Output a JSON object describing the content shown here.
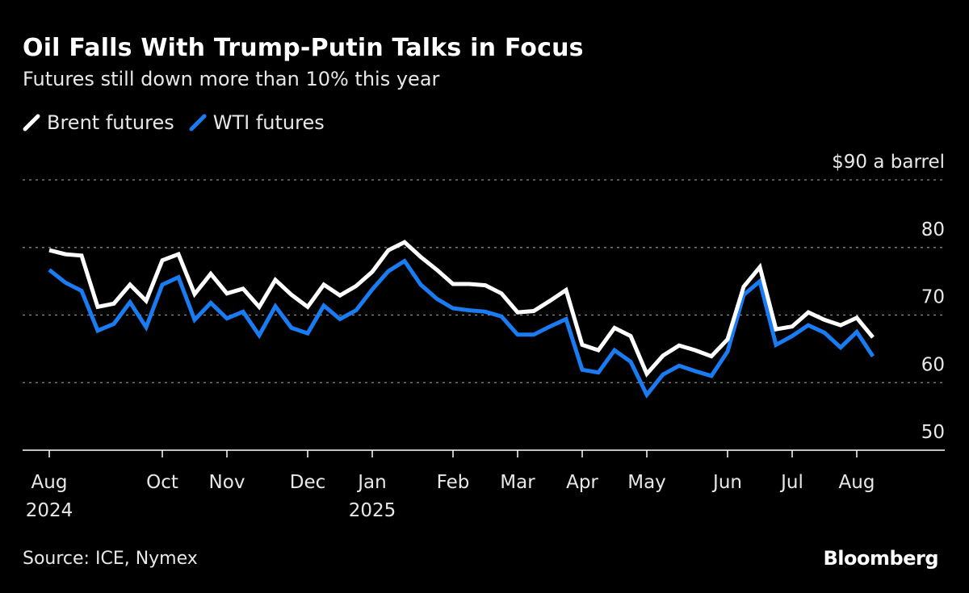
{
  "title": "Oil Falls With Trump-Putin Talks in Focus",
  "subtitle": "Futures still down more than 10% this year",
  "source": "Source: ICE, Nymex",
  "logo": "Bloomberg",
  "chart_data": {
    "type": "line",
    "title": "Oil Falls With Trump-Putin Talks in Focus",
    "subtitle": "Futures still down more than 10% this year",
    "ylabel": "$90 a barrel",
    "ylim": [
      50,
      90
    ],
    "yticks": [
      "50",
      "60",
      "70",
      "80",
      "$90 a barrel"
    ],
    "ytick_values": [
      50,
      60,
      70,
      80,
      90
    ],
    "grid": true,
    "legend": "top-left",
    "x_ticks": [
      {
        "label": "Aug",
        "sub": "2024"
      },
      {
        "label": "Oct",
        "sub": ""
      },
      {
        "label": "Nov",
        "sub": ""
      },
      {
        "label": "Dec",
        "sub": ""
      },
      {
        "label": "Jan",
        "sub": "2025"
      },
      {
        "label": "Feb",
        "sub": ""
      },
      {
        "label": "Mar",
        "sub": ""
      },
      {
        "label": "Apr",
        "sub": ""
      },
      {
        "label": "May",
        "sub": ""
      },
      {
        "label": "Jun",
        "sub": ""
      },
      {
        "label": "Jul",
        "sub": ""
      },
      {
        "label": "Aug",
        "sub": ""
      }
    ],
    "series": [
      {
        "name": "Brent futures",
        "color": "#ffffff",
        "values": [
          79.6,
          79.0,
          78.8,
          71.2,
          71.7,
          74.5,
          72.1,
          78.1,
          79.0,
          73.1,
          76.1,
          73.2,
          73.9,
          71.2,
          75.2,
          73.0,
          71.2,
          74.5,
          72.9,
          74.3,
          76.4,
          79.6,
          80.8,
          78.6,
          76.7,
          74.6,
          74.6,
          74.4,
          73.2,
          70.4,
          70.6,
          72.1,
          73.7,
          65.6,
          64.8,
          68.1,
          66.9,
          61.3,
          64.0,
          65.5,
          64.8,
          63.9,
          66.4,
          74.2,
          77.1,
          67.9,
          68.3,
          70.4,
          69.3,
          68.5,
          69.6,
          66.7
        ]
      },
      {
        "name": "WTI futures",
        "color": "#1a7cf2",
        "values": [
          76.7,
          74.8,
          73.6,
          67.7,
          68.7,
          71.9,
          68.2,
          74.5,
          75.6,
          69.3,
          71.8,
          69.5,
          70.5,
          67.0,
          71.3,
          68.1,
          67.3,
          71.4,
          69.4,
          70.7,
          73.8,
          76.5,
          78.0,
          74.5,
          72.4,
          71.0,
          70.7,
          70.5,
          69.8,
          67.1,
          67.1,
          68.3,
          69.4,
          61.9,
          61.5,
          64.8,
          63.1,
          58.2,
          61.2,
          62.5,
          61.7,
          61.0,
          64.6,
          73.0,
          75.0,
          65.6,
          66.9,
          68.5,
          67.4,
          65.2,
          67.5,
          63.9
        ]
      }
    ]
  }
}
